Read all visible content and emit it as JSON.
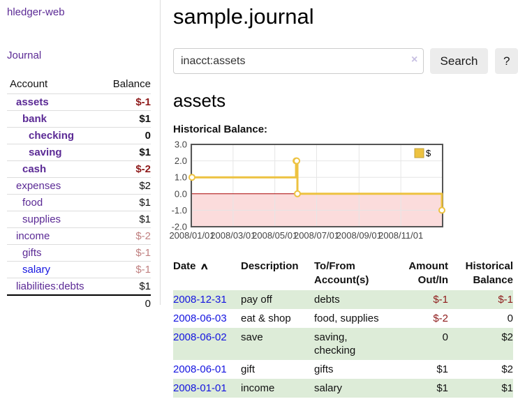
{
  "app": {
    "brand": "hledger-web"
  },
  "sidebar": {
    "journal_link": "Journal",
    "accounts": {
      "headers": {
        "account": "Account",
        "balance": "Balance"
      },
      "rows": [
        {
          "name": "assets",
          "balance": "$-1"
        },
        {
          "name": "bank",
          "balance": "$1"
        },
        {
          "name": "checking",
          "balance": "0"
        },
        {
          "name": "saving",
          "balance": "$1"
        },
        {
          "name": "cash",
          "balance": "$-2"
        },
        {
          "name": "expenses",
          "balance": "$2"
        },
        {
          "name": "food",
          "balance": "$1"
        },
        {
          "name": "supplies",
          "balance": "$1"
        },
        {
          "name": "income",
          "balance": "$-2"
        },
        {
          "name": "gifts",
          "balance": "$-1"
        },
        {
          "name": "salary",
          "balance": "$-1"
        },
        {
          "name": "liabilities:debts",
          "balance": "$1"
        }
      ],
      "total": "0"
    }
  },
  "header": {
    "title": "sample.journal"
  },
  "search": {
    "value": "inacct:assets",
    "button_label": "Search",
    "help_label": "?"
  },
  "icons": {
    "clear_search": "×",
    "sort_ascending": "∧"
  },
  "account_page": {
    "heading": "assets",
    "chart_heading": "Historical Balance:"
  },
  "chart_data": {
    "type": "line",
    "step": true,
    "title": "Historical Balance",
    "series": [
      {
        "name": "$",
        "color": "#edc240",
        "points": [
          [
            "2008-01-01",
            1
          ],
          [
            "2008-06-01",
            2
          ],
          [
            "2008-06-02",
            2
          ],
          [
            "2008-06-03",
            0
          ],
          [
            "2008-12-31",
            -1
          ]
        ]
      }
    ],
    "xlim": [
      "2008-01-01",
      "2008-12-31"
    ],
    "ylim": [
      -2,
      3
    ],
    "x_ticks": [
      {
        "date": "2008-01-01",
        "label": "2008/01/01"
      },
      {
        "date": "2008-03-01",
        "label": "2008/03/01"
      },
      {
        "date": "2008-05-01",
        "label": "2008/05/01"
      },
      {
        "date": "2008-07-01",
        "label": "2008/07/01"
      },
      {
        "date": "2008-09-01",
        "label": "2008/09/01"
      },
      {
        "date": "2008-11-01",
        "label": "2008/11/01"
      }
    ],
    "y_ticks": [
      {
        "value": 3,
        "label": "3.0"
      },
      {
        "value": 2,
        "label": "2.0"
      },
      {
        "value": 1,
        "label": "1.0"
      },
      {
        "value": 0,
        "label": "0.0"
      },
      {
        "value": -1,
        "label": "-1.0"
      },
      {
        "value": -2,
        "label": "-2.0"
      }
    ],
    "grid": true,
    "legend_position": "top-right",
    "negative_region_fill": "#fbdcdc",
    "zero_line_color": "#aa0000"
  },
  "register": {
    "headers": {
      "date": "Date",
      "description": "Description",
      "accounts": "To/From\nAccount(s)",
      "amount": "Amount\nOut/In",
      "balance": "Historical\nBalance"
    },
    "rows": [
      {
        "date": "2008-12-31",
        "description": "pay off",
        "accounts": "debts",
        "amount": "$-1",
        "balance": "$-1"
      },
      {
        "date": "2008-06-03",
        "description": "eat & shop",
        "accounts": "food, supplies",
        "amount": "$-2",
        "balance": "0"
      },
      {
        "date": "2008-06-02",
        "description": "save",
        "accounts": "saving,\nchecking",
        "amount": "0",
        "balance": "$2"
      },
      {
        "date": "2008-06-01",
        "description": "gift",
        "accounts": "gifts",
        "amount": "$1",
        "balance": "$2"
      },
      {
        "date": "2008-01-01",
        "description": "income",
        "accounts": "salary",
        "amount": "$1",
        "balance": "$1"
      }
    ]
  },
  "colors": {
    "link_purple": "#5b2a95",
    "link_blue": "#1414e0",
    "negative_strong": "#8e1a1a",
    "negative_muted": "#c08080",
    "row_stripe_green": "#ddecd8",
    "chart_line_gold": "#edc240",
    "chart_negative_fill": "#fbdcdc",
    "chart_zero_line": "#aa0000"
  }
}
